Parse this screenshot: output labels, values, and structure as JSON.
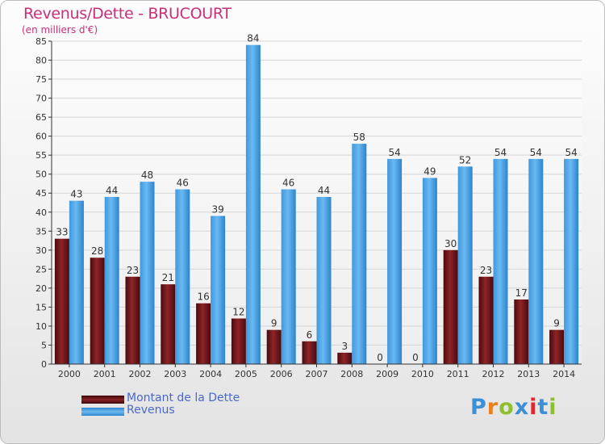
{
  "chart_data": {
    "type": "bar",
    "title": "Revenus/Dette - BRUCOURT",
    "subtitle": "(en milliers d'€)",
    "xlabel": "",
    "ylabel": "",
    "ylim": [
      0,
      85
    ],
    "yticks": [
      "0",
      "5",
      "10",
      "15",
      "20",
      "25",
      "30",
      "35",
      "40",
      "45",
      "50",
      "55",
      "60",
      "65",
      "70",
      "75",
      "80",
      "85"
    ],
    "grid": true,
    "legend_position": "bottom-left",
    "categories": [
      "2000",
      "2001",
      "2002",
      "2003",
      "2004",
      "2005",
      "2006",
      "2007",
      "2008",
      "2009",
      "2010",
      "2011",
      "2012",
      "2013",
      "2014"
    ],
    "series": [
      {
        "name": "Montant de la Dette",
        "color": "#7a1a1d",
        "values": [
          33,
          28,
          23,
          21,
          16,
          12,
          9,
          6,
          3,
          0,
          0,
          30,
          23,
          17,
          9
        ]
      },
      {
        "name": "Revenus",
        "color": "#4da3e6",
        "values": [
          43,
          44,
          48,
          46,
          39,
          84,
          46,
          44,
          58,
          54,
          49,
          52,
          54,
          54,
          54
        ]
      }
    ]
  },
  "logo": {
    "text": "Proxiti"
  },
  "colors": {
    "title": "#c8307a",
    "axis": "#333333",
    "grid": "#d6d6d6",
    "legend_text": "#4a68c9"
  }
}
